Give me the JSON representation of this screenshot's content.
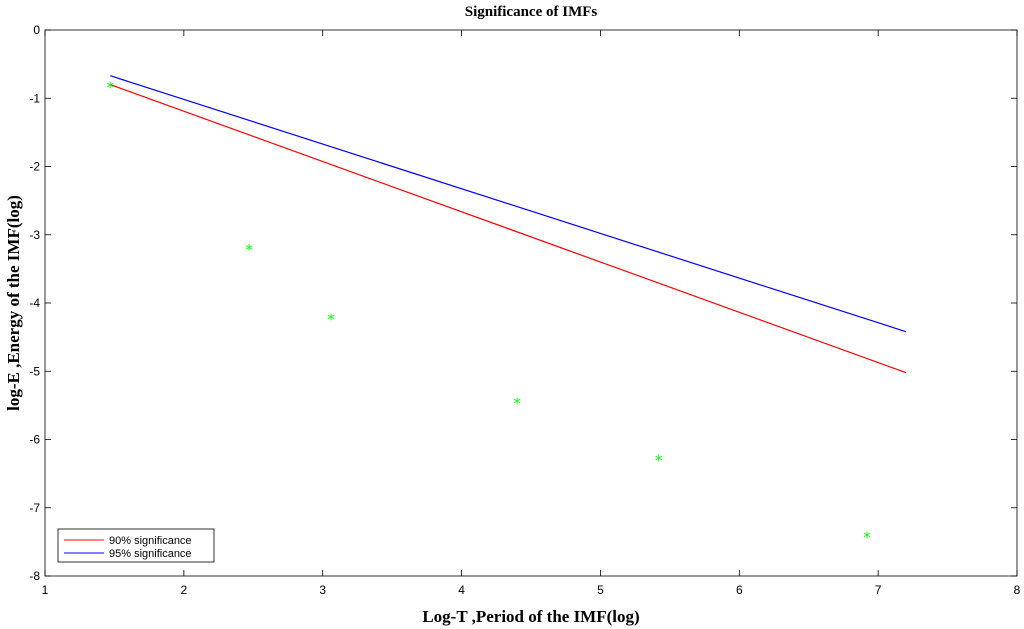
{
  "chart_data": {
    "type": "line",
    "title": "Significance of IMFs",
    "xlabel": "Log-T ,Period of the IMF(log)",
    "ylabel": "log-E ,Energy  of the IMF(log)",
    "xlim": [
      1,
      8
    ],
    "ylim": [
      -8,
      0
    ],
    "xticks": [
      1,
      2,
      3,
      4,
      5,
      6,
      7,
      8
    ],
    "yticks": [
      0,
      -1,
      -2,
      -3,
      -4,
      -5,
      -6,
      -7,
      -8
    ],
    "grid": false,
    "legend_position": "bottom-left",
    "series": [
      {
        "name": "90% significance",
        "kind": "line",
        "color": "#ff0000",
        "x": [
          1.47,
          7.2
        ],
        "y": [
          -0.8,
          -5.02
        ]
      },
      {
        "name": "95% significance",
        "kind": "line",
        "color": "#0000ff",
        "x": [
          1.47,
          7.2
        ],
        "y": [
          -0.67,
          -4.42
        ]
      },
      {
        "kind": "scatter",
        "marker": "*",
        "color": "#00ff00",
        "x": [
          1.47,
          2.47,
          3.06,
          4.4,
          5.42,
          6.92
        ],
        "y": [
          -0.83,
          -3.21,
          -4.23,
          -5.46,
          -6.29,
          -7.42
        ]
      }
    ]
  }
}
